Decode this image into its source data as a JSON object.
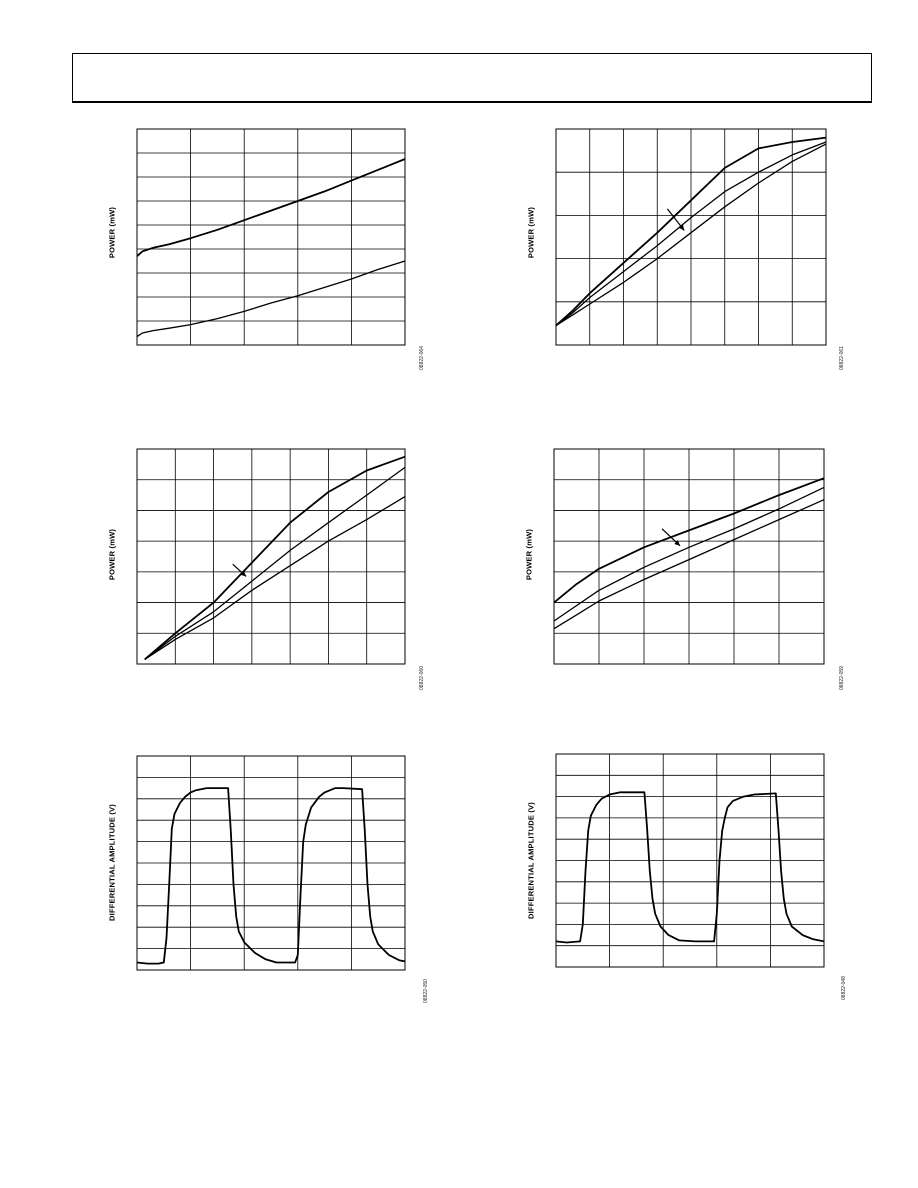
{
  "page": {
    "header_text": ""
  },
  "chart_data": [
    {
      "id": "c1",
      "type": "line",
      "ylabel": "POWER (mW)",
      "figure_code": "08822-064",
      "grid": {
        "cols": 5,
        "rows": 9
      },
      "xlim": [
        0,
        5
      ],
      "ylim": [
        0,
        9
      ],
      "series": [
        {
          "x": [
            0,
            0.1,
            0.3,
            0.6,
            1,
            1.5,
            2,
            2.5,
            3,
            3.5,
            4,
            4.5,
            5
          ],
          "y": [
            3.7,
            3.9,
            4.05,
            4.2,
            4.45,
            4.8,
            5.2,
            5.6,
            6.0,
            6.4,
            6.85,
            7.3,
            7.75
          ]
        },
        {
          "x": [
            0,
            0.1,
            0.3,
            0.6,
            1,
            1.5,
            2,
            2.5,
            3,
            3.5,
            4,
            4.5,
            5
          ],
          "y": [
            0.35,
            0.5,
            0.6,
            0.7,
            0.85,
            1.1,
            1.4,
            1.75,
            2.05,
            2.4,
            2.75,
            3.15,
            3.5
          ]
        }
      ]
    },
    {
      "id": "c2",
      "type": "line",
      "ylabel": "POWER (mW)",
      "figure_code": "08822-061",
      "grid": {
        "cols": 8,
        "rows": 5
      },
      "xlim": [
        0,
        8
      ],
      "ylim": [
        0,
        5
      ],
      "arrow": {
        "from": [
          3.3,
          3.15
        ],
        "to": [
          3.8,
          2.65
        ]
      },
      "series": [
        {
          "x": [
            0,
            0.5,
            1,
            2,
            3,
            4,
            5,
            6,
            7,
            8
          ],
          "y": [
            0.45,
            0.8,
            1.2,
            1.9,
            2.6,
            3.35,
            4.1,
            4.55,
            4.7,
            4.8
          ]
        },
        {
          "x": [
            0,
            0.5,
            1,
            2,
            3,
            4,
            5,
            6,
            7,
            8
          ],
          "y": [
            0.45,
            0.75,
            1.1,
            1.7,
            2.3,
            2.95,
            3.55,
            4.0,
            4.4,
            4.7
          ]
        },
        {
          "x": [
            0,
            0.5,
            1,
            2,
            3,
            4,
            5,
            6,
            7,
            8
          ],
          "y": [
            0.45,
            0.7,
            0.95,
            1.45,
            2.0,
            2.6,
            3.2,
            3.75,
            4.25,
            4.65
          ]
        }
      ]
    },
    {
      "id": "c3",
      "type": "line",
      "ylabel": "POWER (mW)",
      "figure_code": "08822-060",
      "grid": {
        "cols": 7,
        "rows": 7
      },
      "xlim": [
        0,
        7
      ],
      "ylim": [
        0,
        7
      ],
      "arrow": {
        "from": [
          2.5,
          3.25
        ],
        "to": [
          2.85,
          2.85
        ]
      },
      "series": [
        {
          "x": [
            0.2,
            1,
            2,
            3,
            4,
            5,
            6,
            7
          ],
          "y": [
            0.15,
            1.0,
            2.0,
            3.3,
            4.6,
            5.6,
            6.3,
            6.75
          ]
        },
        {
          "x": [
            0.2,
            1,
            2,
            3,
            4,
            5,
            6,
            7
          ],
          "y": [
            0.15,
            0.9,
            1.7,
            2.7,
            3.7,
            4.6,
            5.5,
            6.4
          ]
        },
        {
          "x": [
            0.2,
            1,
            2,
            3,
            4,
            5,
            6,
            7
          ],
          "y": [
            0.15,
            0.8,
            1.5,
            2.4,
            3.2,
            4.0,
            4.7,
            5.45
          ]
        }
      ]
    },
    {
      "id": "c4",
      "type": "line",
      "ylabel": "POWER (mW)",
      "figure_code": "08822-059",
      "grid": {
        "cols": 6,
        "rows": 7
      },
      "xlim": [
        0,
        6
      ],
      "ylim": [
        0,
        7
      ],
      "arrow": {
        "from": [
          2.4,
          4.4
        ],
        "to": [
          2.8,
          3.85
        ]
      },
      "series": [
        {
          "x": [
            0,
            0.5,
            1,
            2,
            3,
            4,
            5,
            6
          ],
          "y": [
            2.0,
            2.6,
            3.1,
            3.8,
            4.35,
            4.9,
            5.5,
            6.05
          ]
        },
        {
          "x": [
            0,
            0.5,
            1,
            2,
            3,
            4,
            5,
            6
          ],
          "y": [
            1.4,
            1.9,
            2.4,
            3.15,
            3.8,
            4.4,
            5.05,
            5.75
          ]
        },
        {
          "x": [
            0,
            0.5,
            1,
            2,
            3,
            4,
            5,
            6
          ],
          "y": [
            1.15,
            1.6,
            2.05,
            2.75,
            3.4,
            4.05,
            4.7,
            5.35
          ]
        }
      ]
    },
    {
      "id": "c5",
      "type": "line",
      "ylabel": "DIFFERENTIAL AMPLITUDE (V)",
      "figure_code": "08822-050",
      "grid": {
        "cols": 5,
        "rows": 10
      },
      "xlim": [
        0,
        5
      ],
      "ylim": [
        0,
        10
      ],
      "series": [
        {
          "x": [
            0,
            0.2,
            0.4,
            0.5,
            0.55,
            0.6,
            0.65,
            0.7,
            0.8,
            0.9,
            1.0,
            1.1,
            1.3,
            1.5,
            1.7,
            1.75,
            1.8,
            1.85,
            1.9,
            2.0,
            2.2,
            2.4,
            2.6,
            2.8,
            2.95,
            3.0,
            3.05,
            3.1,
            3.15,
            3.25,
            3.4,
            3.5,
            3.7,
            3.85,
            4.2,
            4.25,
            4.3,
            4.35,
            4.4,
            4.5,
            4.7,
            4.9,
            5.0
          ],
          "y": [
            0.35,
            0.3,
            0.3,
            0.35,
            1.5,
            4.0,
            6.6,
            7.3,
            7.8,
            8.1,
            8.3,
            8.4,
            8.5,
            8.5,
            8.5,
            6.5,
            4.0,
            2.5,
            1.8,
            1.3,
            0.8,
            0.5,
            0.35,
            0.35,
            0.35,
            0.7,
            3.5,
            6.0,
            6.8,
            7.6,
            8.1,
            8.3,
            8.5,
            8.5,
            8.45,
            6.5,
            4.0,
            2.5,
            1.8,
            1.2,
            0.7,
            0.45,
            0.4
          ]
        }
      ]
    },
    {
      "id": "c6",
      "type": "line",
      "ylabel": "DIFFERENTIAL AMPLITUDE (V)",
      "figure_code": "08822-048",
      "grid": {
        "cols": 5,
        "rows": 10
      },
      "xlim": [
        0,
        5
      ],
      "ylim": [
        0,
        10
      ],
      "series": [
        {
          "x": [
            0,
            0.2,
            0.45,
            0.5,
            0.55,
            0.6,
            0.65,
            0.75,
            0.85,
            1.0,
            1.2,
            1.4,
            1.65,
            1.7,
            1.75,
            1.8,
            1.85,
            1.95,
            2.1,
            2.3,
            2.6,
            2.95,
            3.0,
            3.05,
            3.1,
            3.15,
            3.2,
            3.3,
            3.5,
            3.7,
            4.1,
            4.15,
            4.2,
            4.25,
            4.3,
            4.4,
            4.6,
            4.8,
            5.0
          ],
          "y": [
            1.2,
            1.15,
            1.2,
            2.0,
            4.5,
            6.4,
            7.1,
            7.6,
            7.9,
            8.1,
            8.2,
            8.2,
            8.2,
            6.5,
            4.5,
            3.2,
            2.5,
            1.9,
            1.5,
            1.25,
            1.2,
            1.2,
            2.5,
            5.0,
            6.4,
            7.0,
            7.5,
            7.8,
            8.0,
            8.1,
            8.15,
            6.5,
            4.5,
            3.2,
            2.5,
            1.9,
            1.5,
            1.3,
            1.2
          ]
        }
      ]
    }
  ]
}
